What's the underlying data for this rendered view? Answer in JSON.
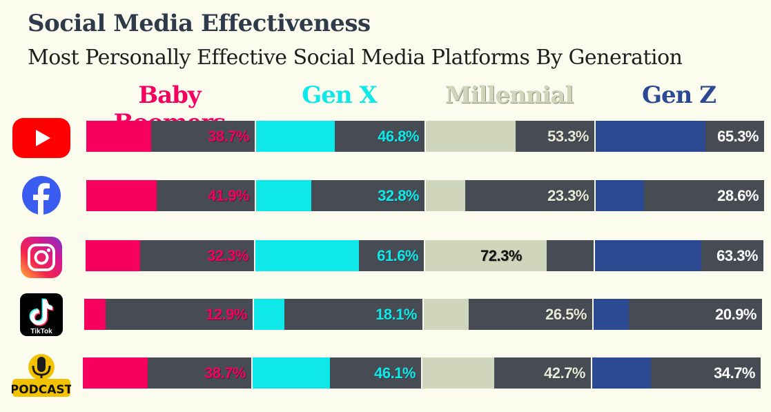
{
  "title": "Social Media Effectiveness",
  "subtitle": "Most Personally Effective Social Media Platforms By Generation",
  "colors": {
    "background": "#fcfcee",
    "bar_track": "#474c54",
    "baby_boomers": "#f5005f",
    "gen_x": "#0fe8e8",
    "millennial": "#cfd6bc",
    "gen_z": "#2c4a94"
  },
  "platform_icons": [
    {
      "name": "youtube-icon"
    },
    {
      "name": "facebook-icon"
    },
    {
      "name": "instagram-icon"
    },
    {
      "name": "tiktok-icon",
      "text": "TikTok"
    },
    {
      "name": "podcast-icon",
      "text": "PODCAST"
    }
  ],
  "chart_data": {
    "type": "bar",
    "title": "Social Media Effectiveness",
    "subtitle": "Most Personally Effective Social Media Platforms By Generation",
    "categories": [
      "YouTube",
      "Facebook",
      "Instagram",
      "TikTok",
      "Podcast"
    ],
    "series": [
      {
        "name": "Baby Boomers",
        "color": "#f5005f",
        "values": [
          38.7,
          41.9,
          32.3,
          12.9,
          38.7
        ],
        "labels": [
          "38.7%",
          "41.9%",
          "32.3%",
          "12.9%",
          "38.7%"
        ]
      },
      {
        "name": "Gen X",
        "color": "#0fe8e8",
        "values": [
          46.8,
          32.8,
          61.6,
          18.1,
          46.1
        ],
        "labels": [
          "46.8%",
          "32.8%",
          "61.6%",
          "18.1%",
          "46.1%"
        ]
      },
      {
        "name": "Millennial",
        "color": "#cfd6bc",
        "values": [
          53.3,
          23.3,
          72.3,
          26.5,
          42.7
        ],
        "labels": [
          "53.3%",
          "23.3%",
          "72.3%",
          "26.5%",
          "42.7%"
        ]
      },
      {
        "name": "Gen Z",
        "color": "#2c4a94",
        "values": [
          65.3,
          28.6,
          63.3,
          20.9,
          34.7
        ],
        "labels": [
          "65.3%",
          "28.6%",
          "63.3%",
          "20.9%",
          "34.7%"
        ]
      }
    ],
    "ylim": [
      0,
      100
    ],
    "legend": "top"
  }
}
